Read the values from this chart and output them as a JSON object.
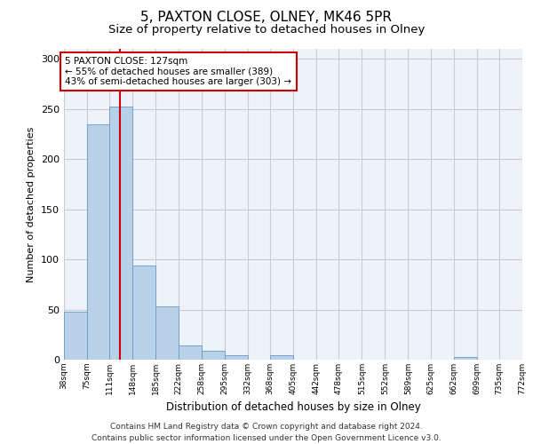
{
  "title": "5, PAXTON CLOSE, OLNEY, MK46 5PR",
  "subtitle": "Size of property relative to detached houses in Olney",
  "xlabel": "Distribution of detached houses by size in Olney",
  "ylabel": "Number of detached properties",
  "footer_line1": "Contains HM Land Registry data © Crown copyright and database right 2024.",
  "footer_line2": "Contains public sector information licensed under the Open Government Licence v3.0.",
  "bar_values": [
    48,
    235,
    252,
    94,
    53,
    14,
    9,
    4,
    0,
    4,
    0,
    0,
    0,
    0,
    0,
    0,
    0,
    3,
    0,
    0
  ],
  "bin_edges": [
    38,
    75,
    111,
    148,
    185,
    222,
    258,
    295,
    332,
    368,
    405,
    442,
    478,
    515,
    552,
    589,
    625,
    662,
    699,
    735,
    772
  ],
  "bar_color": "#b8d0e8",
  "bar_edge_color": "#6699cc",
  "bar_edge_width": 0.6,
  "property_size": 127,
  "property_size_label": "5 PAXTON CLOSE: 127sqm",
  "annotation_line1": "← 55% of detached houses are smaller (389)",
  "annotation_line2": "43% of semi-detached houses are larger (303) →",
  "vline_color": "#cc0000",
  "annotation_box_color": "#cc0000",
  "ylim": [
    0,
    310
  ],
  "yticks": [
    0,
    50,
    100,
    150,
    200,
    250,
    300
  ],
  "grid_color": "#cccccc",
  "background_color": "#eef2f9",
  "title_fontsize": 11,
  "subtitle_fontsize": 9.5,
  "footer_fontsize": 6.5
}
